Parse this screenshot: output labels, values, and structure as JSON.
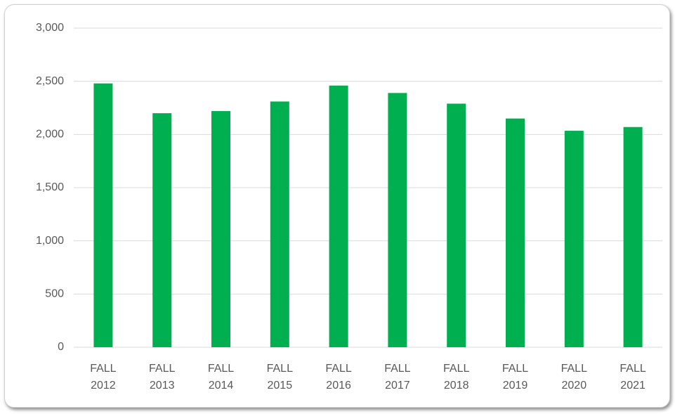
{
  "chart_data": {
    "type": "bar",
    "categories": [
      "FALL 2012",
      "FALL 2013",
      "FALL 2014",
      "FALL 2015",
      "FALL 2016",
      "FALL 2017",
      "FALL 2018",
      "FALL 2019",
      "FALL 2020",
      "FALL 2021"
    ],
    "values": [
      2480,
      2200,
      2220,
      2310,
      2460,
      2390,
      2290,
      2150,
      2035,
      2070
    ],
    "color": "#00b050",
    "ylim": [
      0,
      3000
    ],
    "yticks": [
      0,
      500,
      {
        "value": 1000,
        "label": "1,000"
      },
      {
        "value": 1500,
        "label": "1,500"
      },
      {
        "value": 2000,
        "label": "2,000"
      },
      {
        "value": 2500,
        "label": "2,500"
      },
      {
        "value": 3000,
        "label": "3,000"
      }
    ],
    "grid": true
  }
}
